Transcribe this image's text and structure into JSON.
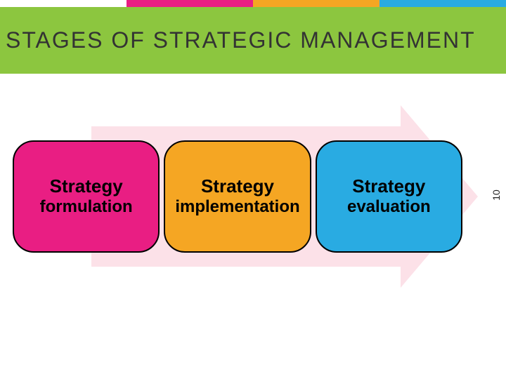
{
  "colors": {
    "green": "#8cc63f",
    "pink": "#e91e83",
    "orange": "#f5a623",
    "cyan": "#29abe2",
    "arrow_fill": "#fce1e8",
    "title_color": "#333333",
    "stage_text": "#000000",
    "stage_border": "#000000"
  },
  "title": "STAGES OF STRATEGIC MANAGEMENT",
  "title_fontsize": 32,
  "title_letter_spacing": 2,
  "accent_bar": {
    "segments": [
      "blank",
      "pink",
      "orange",
      "cyan"
    ]
  },
  "arrow": {
    "fill": "#fce1e8"
  },
  "stages": [
    {
      "line1": "Strategy",
      "line2": "formulation",
      "bg": "#e91e83",
      "border": "#000000",
      "text_color": "#000000"
    },
    {
      "line1": "Strategy",
      "line2": "implementation",
      "bg": "#f5a623",
      "border": "#000000",
      "text_color": "#000000"
    },
    {
      "line1": "Strategy",
      "line2": "evaluation",
      "bg": "#29abe2",
      "border": "#000000",
      "text_color": "#000000"
    }
  ],
  "page_number": "10"
}
